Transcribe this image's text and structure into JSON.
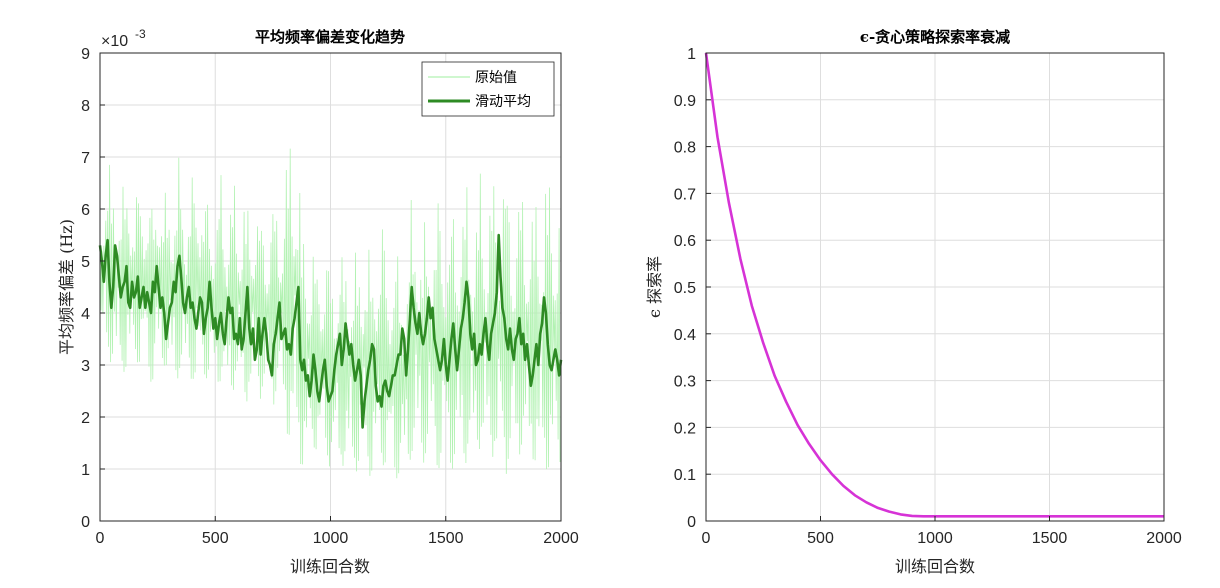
{
  "colors": {
    "raw_series": "#b2f2b2",
    "smooth_series": "#2e8b24",
    "epsilon_series": "#d633d6",
    "axis": "#262626",
    "grid": "#dedede"
  },
  "chart_data": [
    {
      "type": "line",
      "title": "平均频率偏差变化趋势",
      "xlabel": "训练回合数",
      "ylabel": "平均频率偏差 (Hz)",
      "exponent_label": "×10",
      "exponent_power": "-3",
      "y_scale_factor": 0.001,
      "xlim": [
        0,
        2000
      ],
      "ylim": [
        0,
        9
      ],
      "grid": true,
      "legend_location": "top-right",
      "xticks": [
        "0",
        "500",
        "1000",
        "1500",
        "2000"
      ],
      "yticks": [
        "0",
        "1",
        "2",
        "3",
        "4",
        "5",
        "6",
        "7",
        "8",
        "9"
      ],
      "series": [
        {
          "name": "原始值",
          "style": "thin light green noisy line",
          "x": [
            0,
            25,
            50,
            75,
            100,
            125,
            150,
            175,
            200,
            225,
            250,
            275,
            300,
            325,
            350,
            375,
            400,
            425,
            450,
            475,
            500,
            525,
            550,
            575,
            600,
            625,
            650,
            675,
            700,
            725,
            750,
            775,
            800,
            825,
            850,
            875,
            900,
            925,
            950,
            975,
            1000,
            1025,
            1050,
            1075,
            1100,
            1125,
            1150,
            1175,
            1200,
            1225,
            1250,
            1275,
            1300,
            1325,
            1350,
            1375,
            1400,
            1425,
            1450,
            1475,
            1500,
            1525,
            1550,
            1575,
            1600,
            1625,
            1650,
            1675,
            1700,
            1725,
            1750,
            1775,
            1800,
            1825,
            1850,
            1875,
            1900,
            1925,
            1950,
            1975,
            2000
          ],
          "upper": [
            6.4,
            7.2,
            6.8,
            7.0,
            6.5,
            7.3,
            6.2,
            7.0,
            6.6,
            6.3,
            7.4,
            6.1,
            6.9,
            6.6,
            7.2,
            6.4,
            6.8,
            7.5,
            6.3,
            6.7,
            6.2,
            6.9,
            6.3,
            6.8,
            6.2,
            6.7,
            6.0,
            6.6,
            6.1,
            5.9,
            6.6,
            6.2,
            7.0,
            7.9,
            8.2,
            6.0,
            5.9,
            5.5,
            5.3,
            5.7,
            5.2,
            5.6,
            5.3,
            5.8,
            5.1,
            5.5,
            5.7,
            5.2,
            5.9,
            6.1,
            5.4,
            5.6,
            5.2,
            5.1,
            6.2,
            6.5,
            5.7,
            6.0,
            6.3,
            6.6,
            6.1,
            6.3,
            6.4,
            6.8,
            6.6,
            6.2,
            6.9,
            6.4,
            7.1,
            6.6,
            7.6,
            6.8,
            6.3,
            6.9,
            6.7,
            6.2,
            6.9,
            6.5,
            7.3,
            6.8,
            6.0
          ],
          "lower": [
            3.2,
            3.3,
            3.0,
            2.8,
            2.9,
            2.7,
            3.2,
            2.9,
            3.0,
            2.6,
            2.7,
            3.0,
            2.8,
            2.5,
            2.9,
            2.6,
            2.7,
            2.4,
            2.8,
            2.6,
            2.5,
            2.7,
            2.3,
            2.5,
            2.6,
            2.2,
            2.4,
            2.6,
            2.3,
            2.5,
            2.2,
            2.4,
            1.9,
            1.4,
            1.2,
            1.0,
            1.1,
            1.3,
            1.4,
            1.2,
            1.0,
            0.9,
            1.1,
            0.8,
            1.0,
            0.9,
            1.2,
            0.8,
            0.9,
            1.1,
            0.9,
            0.8,
            0.8,
            0.8,
            1.2,
            1.3,
            1.0,
            1.4,
            1.1,
            0.9,
            1.2,
            1.0,
            0.8,
            1.2,
            1.0,
            1.3,
            1.4,
            1.1,
            1.3,
            0.9,
            1.0,
            0.8,
            1.1,
            1.3,
            1.0,
            1.2,
            0.9,
            0.8,
            1.0,
            0.9,
            1.0
          ]
        },
        {
          "name": "滑动平均",
          "style": "thick dark green line",
          "x": [
            0,
            25,
            50,
            75,
            100,
            125,
            150,
            175,
            200,
            225,
            250,
            275,
            300,
            325,
            350,
            375,
            400,
            425,
            450,
            475,
            500,
            525,
            550,
            575,
            600,
            625,
            650,
            675,
            700,
            725,
            750,
            775,
            800,
            825,
            850,
            875,
            900,
            925,
            950,
            975,
            1000,
            1025,
            1050,
            1075,
            1100,
            1125,
            1150,
            1175,
            1200,
            1225,
            1250,
            1275,
            1300,
            1325,
            1350,
            1375,
            1400,
            1425,
            1450,
            1475,
            1500,
            1525,
            1550,
            1575,
            1600,
            1625,
            1650,
            1675,
            1700,
            1725,
            1750,
            1775,
            1800,
            1825,
            1850,
            1875,
            1900,
            1925,
            1950,
            1975,
            2000
          ],
          "values": [
            5.3,
            4.9,
            5.4,
            4.3,
            5.5,
            4.6,
            4.8,
            4.3,
            4.4,
            4.9,
            4.2,
            4.5,
            4.3,
            4.9,
            4.0,
            4.6,
            4.2,
            5.1,
            4.1,
            4.5,
            3.9,
            4.2,
            3.8,
            4.6,
            3.6,
            4.3,
            3.5,
            4.1,
            3.6,
            3.3,
            4.0,
            3.5,
            4.1,
            4.4,
            3.2,
            2.8,
            2.6,
            3.2,
            2.5,
            3.1,
            2.7,
            2.4,
            3.3,
            3.6,
            3.0,
            3.4,
            3.0,
            2.5,
            2.9,
            3.3,
            2.4,
            2.5,
            2.6,
            3.0,
            2.9,
            3.9,
            4.4,
            3.3,
            3.4,
            4.3,
            3.6,
            2.9,
            3.1,
            3.4,
            4.5,
            3.0,
            3.8,
            3.3,
            4.0,
            3.1,
            5.5,
            3.5,
            3.6,
            3.3,
            3.3,
            2.6,
            3.0,
            3.7,
            4.3,
            2.9,
            3.0
          ],
          "fine_values": [
            5.3,
            5.0,
            4.6,
            5.1,
            5.4,
            4.6,
            4.1,
            4.5,
            5.3,
            5.1,
            4.7,
            4.3,
            4.5,
            4.6,
            4.9,
            4.2,
            4.1,
            4.6,
            4.3,
            4.4,
            4.7,
            4.1,
            4.3,
            4.5,
            4.1,
            4.4,
            4.2,
            4.0,
            4.6,
            4.4,
            4.9,
            4.5,
            4.1,
            4.3,
            4.0,
            3.5,
            3.8,
            4.1,
            4.2,
            4.6,
            4.4,
            4.9,
            5.1,
            4.7,
            4.2,
            4.0,
            4.3,
            4.5,
            4.1,
            4.2,
            3.9,
            3.7,
            4.0,
            4.3,
            4.2,
            3.6,
            3.9,
            4.1,
            4.6,
            4.1,
            3.7,
            3.9,
            3.5,
            3.8,
            4.0,
            3.6,
            3.4,
            3.9,
            4.3,
            4.0,
            4.1,
            3.5,
            3.6,
            3.4,
            3.9,
            3.3,
            3.5,
            4.0,
            4.5,
            3.7,
            3.4,
            3.7,
            3.1,
            3.3,
            3.9,
            3.2,
            3.6,
            3.9,
            3.6,
            3.1,
            3.0,
            2.8,
            3.4,
            3.6,
            3.9,
            4.2,
            3.5,
            3.6,
            3.7,
            3.3,
            3.4,
            3.2,
            3.7,
            3.9,
            4.2,
            4.5,
            3.1,
            2.9,
            3.1,
            2.7,
            2.8,
            2.4,
            2.7,
            3.2,
            2.9,
            2.5,
            2.3,
            2.6,
            2.9,
            3.1,
            2.6,
            2.3,
            2.4,
            2.5,
            2.9,
            3.2,
            3.4,
            3.6,
            3.0,
            3.3,
            3.8,
            3.5,
            3.2,
            3.4,
            3.0,
            2.7,
            2.9,
            3.1,
            2.8,
            1.8,
            2.3,
            2.6,
            2.9,
            3.1,
            3.4,
            3.3,
            2.6,
            2.3,
            2.4,
            2.2,
            2.6,
            2.7,
            2.5,
            2.4,
            2.6,
            2.8,
            2.8,
            3.0,
            3.2,
            3.2,
            3.7,
            3.5,
            2.8,
            3.3,
            3.9,
            4.5,
            4.1,
            3.8,
            3.6,
            4.0,
            3.6,
            3.4,
            3.6,
            3.9,
            4.3,
            3.9,
            4.1,
            3.5,
            3.3,
            3.1,
            2.9,
            3.1,
            3.5,
            3.0,
            2.7,
            3.1,
            3.5,
            3.8,
            3.3,
            2.9,
            3.3,
            3.7,
            3.9,
            4.2,
            4.6,
            4.3,
            3.6,
            3.3,
            3.6,
            3.0,
            3.1,
            3.4,
            3.2,
            3.6,
            3.9,
            3.4,
            3.1,
            3.6,
            3.8,
            4.0,
            4.4,
            5.5,
            4.7,
            4.1,
            3.9,
            3.5,
            3.3,
            3.7,
            3.3,
            3.1,
            3.5,
            3.6,
            3.9,
            3.4,
            3.6,
            3.1,
            3.4,
            3.0,
            2.6,
            2.8,
            3.1,
            3.4,
            3.0,
            3.6,
            3.8,
            4.3,
            4.0,
            3.4,
            3.0,
            2.9,
            3.1,
            3.3,
            3.1,
            2.8,
            3.1
          ]
        }
      ]
    },
    {
      "type": "line",
      "title": "ϵ-贪心策略探索率衰减",
      "xlabel": "训练回合数",
      "ylabel": "ϵ 探索率",
      "xlim": [
        0,
        2000
      ],
      "ylim": [
        0,
        1
      ],
      "grid": true,
      "xticks": [
        "0",
        "500",
        "1000",
        "1500",
        "2000"
      ],
      "yticks": [
        "0",
        "0.1",
        "0.2",
        "0.3",
        "0.4",
        "0.5",
        "0.6",
        "0.7",
        "0.8",
        "0.9",
        "1"
      ],
      "series": [
        {
          "style": "magenta line",
          "x": [
            0,
            50,
            100,
            150,
            200,
            250,
            300,
            350,
            400,
            450,
            500,
            550,
            600,
            650,
            700,
            750,
            800,
            850,
            900,
            950,
            1000,
            1100,
            1200,
            1300,
            1400,
            1500,
            1600,
            1700,
            1800,
            1900,
            2000
          ],
          "values": [
            1.0,
            0.82,
            0.68,
            0.56,
            0.46,
            0.38,
            0.31,
            0.255,
            0.205,
            0.165,
            0.13,
            0.1,
            0.075,
            0.055,
            0.04,
            0.028,
            0.02,
            0.014,
            0.011,
            0.01,
            0.01,
            0.01,
            0.01,
            0.01,
            0.01,
            0.01,
            0.01,
            0.01,
            0.01,
            0.01,
            0.01
          ]
        }
      ]
    }
  ]
}
